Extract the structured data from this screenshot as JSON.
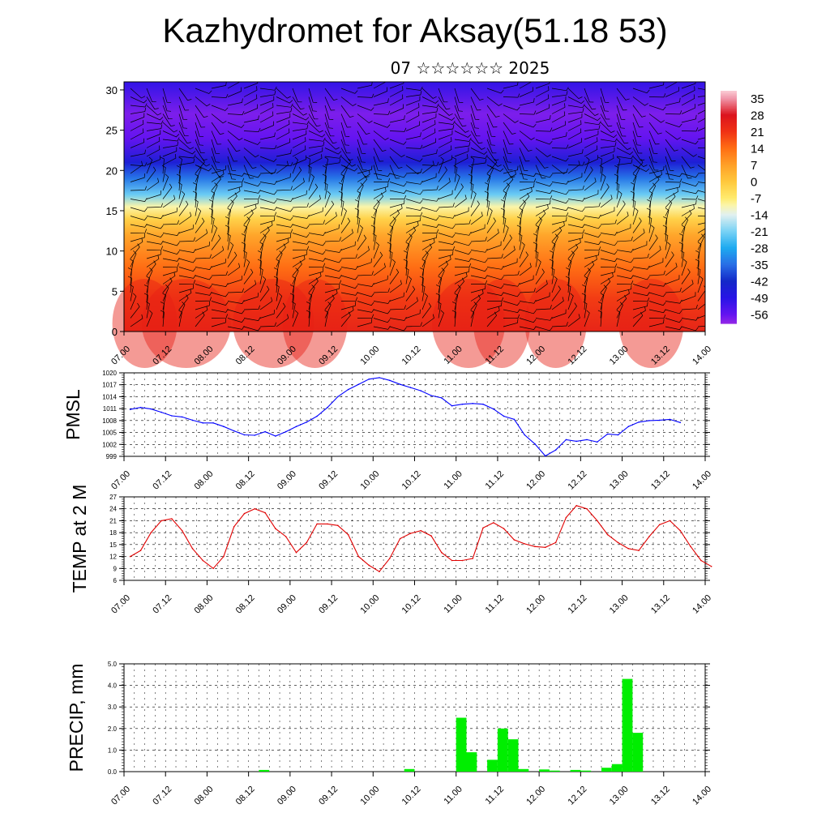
{
  "title": "Kazhydromet for Aksay(51.18 53)",
  "subtitle": "07 ☆☆☆☆☆☆ 2025",
  "time_ticks": [
    "07.00",
    "07.12",
    "08.00",
    "08.12",
    "09.00",
    "09.12",
    "10.00",
    "10.12",
    "11.00",
    "11.12",
    "12.00",
    "12.12",
    "13.00",
    "13.12",
    "14.00"
  ],
  "colors": {
    "pmsl_line": "#0000ff",
    "temp_line": "#e00000",
    "precip_bar": "#00ee00",
    "grid": "#000000"
  },
  "chart_data": [
    {
      "type": "heatmap",
      "name": "cross-section",
      "y_ticks": [
        "0",
        "5",
        "10",
        "15",
        "20",
        "25",
        "30"
      ],
      "ylim": [
        0,
        31
      ],
      "colorbar_labels": [
        "35",
        "28",
        "21",
        "14",
        "7",
        "0",
        "-7",
        "-14",
        "-21",
        "-28",
        "-35",
        "-42",
        "-49",
        "-56"
      ],
      "colorbar_range": [
        -60,
        38
      ],
      "profile_temperature": [
        {
          "h": 0,
          "t": 24
        },
        {
          "h": 4,
          "t": 20
        },
        {
          "h": 8,
          "t": 14
        },
        {
          "h": 12,
          "t": 6
        },
        {
          "h": 14,
          "t": -2
        },
        {
          "h": 15.5,
          "t": -10
        },
        {
          "h": 17,
          "t": -22
        },
        {
          "h": 19,
          "t": -34
        },
        {
          "h": 21,
          "t": -45
        },
        {
          "h": 24,
          "t": -56
        },
        {
          "h": 27,
          "t": -58
        },
        {
          "h": 31,
          "t": -50
        }
      ]
    },
    {
      "type": "line",
      "ylabel": "PMSL",
      "y_ticks": [
        "1020",
        "1017",
        "1014",
        "1011",
        "1008",
        "1005",
        "1002",
        "999"
      ],
      "ylim": [
        999,
        1020
      ],
      "x_step_hours": 3,
      "values": [
        1010.8,
        1011.3,
        1010.9,
        1010.1,
        1009.2,
        1008.9,
        1008.1,
        1007.4,
        1007.4,
        1006.5,
        1005.4,
        1004.4,
        1004.3,
        1005.2,
        1004.1,
        1005.2,
        1006.5,
        1007.6,
        1009.1,
        1011.3,
        1014.0,
        1015.8,
        1017.1,
        1018.4,
        1018.8,
        1018.1,
        1017.1,
        1016.3,
        1015.5,
        1014.3,
        1013.7,
        1011.7,
        1012.1,
        1012.3,
        1012.1,
        1010.9,
        1009.1,
        1008.3,
        1004.4,
        1002.1,
        999.1,
        1000.6,
        1003.2,
        1002.8,
        1003.2,
        1002.6,
        1004.6,
        1004.4,
        1006.5,
        1007.6,
        1008.0,
        1008.1,
        1008.3,
        1007.5
      ]
    },
    {
      "type": "line",
      "ylabel": "TEMP at 2 M",
      "y_ticks": [
        "27",
        "24",
        "21",
        "18",
        "15",
        "12",
        "9",
        "6"
      ],
      "ylim": [
        6,
        27
      ],
      "x_step_hours": 3,
      "values": [
        12.0,
        13.5,
        18.0,
        21.0,
        21.5,
        18.5,
        14.0,
        11.0,
        9.0,
        12.0,
        19.5,
        22.8,
        24.0,
        23.0,
        19.0,
        17.0,
        13.0,
        15.5,
        20.2,
        20.2,
        19.8,
        17.5,
        12.0,
        9.8,
        8.2,
        11.5,
        16.5,
        17.8,
        18.5,
        17.2,
        13.0,
        11.0,
        11.0,
        11.5,
        19.2,
        20.5,
        19.0,
        16.2,
        15.2,
        14.5,
        14.3,
        15.5,
        21.8,
        24.8,
        24.0,
        21.0,
        17.5,
        15.5,
        14.0,
        13.5,
        17.0,
        20.0,
        21.0,
        18.5,
        14.5,
        11.0,
        9.5
      ]
    },
    {
      "type": "bar",
      "ylabel": "PRECIP, mm",
      "y_ticks": [
        "5.0",
        "4.0",
        "3.0",
        "2.0",
        "1.0",
        "0.0"
      ],
      "ylim": [
        0,
        5
      ],
      "x_step_hours": 3,
      "values": [
        0,
        0,
        0,
        0,
        0,
        0,
        0,
        0,
        0,
        0,
        0,
        0,
        0,
        0.08,
        0,
        0,
        0,
        0,
        0,
        0,
        0,
        0,
        0,
        0,
        0,
        0,
        0,
        0.12,
        0,
        0,
        0,
        0,
        2.5,
        0.9,
        0,
        0.55,
        2.0,
        1.5,
        0.12,
        0,
        0.1,
        0.05,
        0,
        0.08,
        0.05,
        0,
        0.18,
        0.35,
        4.3,
        1.8,
        0,
        0,
        0,
        0,
        0,
        0
      ]
    }
  ]
}
